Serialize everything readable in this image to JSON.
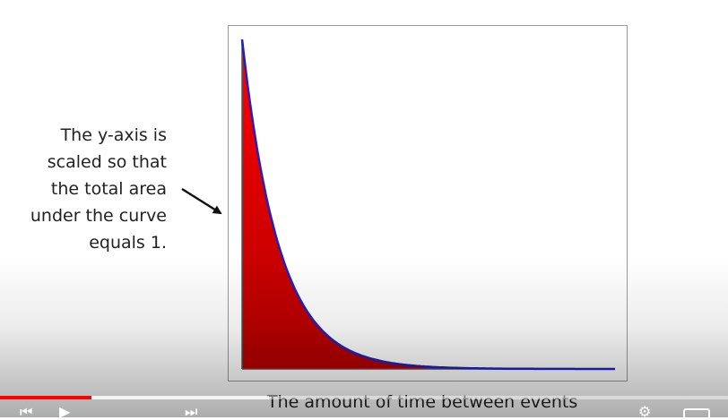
{
  "slide": {
    "annotation_lines": [
      "The y-axis is",
      "scaled so that",
      "the total area",
      "under the curve",
      "equals 1."
    ],
    "x_caption": "The amount of time between events"
  },
  "colors": {
    "fill_top": "#ff0000",
    "fill_bottom": "#b00000",
    "curve": "#2020c0",
    "progress_played": "#ff0000"
  },
  "player": {
    "progress_played": 0.125,
    "progress_buffered": 0.37,
    "icons": [
      "prev-icon",
      "play-icon",
      "next-icon",
      "settings-icon",
      "fullscreen-icon"
    ]
  },
  "chart_data": {
    "type": "area",
    "title": "",
    "xlabel": "The amount of time between events",
    "ylabel": "",
    "curve": "exponential decay",
    "rate": 1,
    "xlim": [
      0,
      10
    ],
    "ylim": [
      0,
      1
    ],
    "x": [
      0,
      0.5,
      1,
      1.5,
      2,
      2.5,
      3,
      4,
      5,
      6,
      8,
      10
    ],
    "y": [
      1.0,
      0.607,
      0.368,
      0.223,
      0.135,
      0.082,
      0.05,
      0.018,
      0.007,
      0.002,
      0.0003,
      0.0
    ],
    "grid": false,
    "legend": "none"
  }
}
